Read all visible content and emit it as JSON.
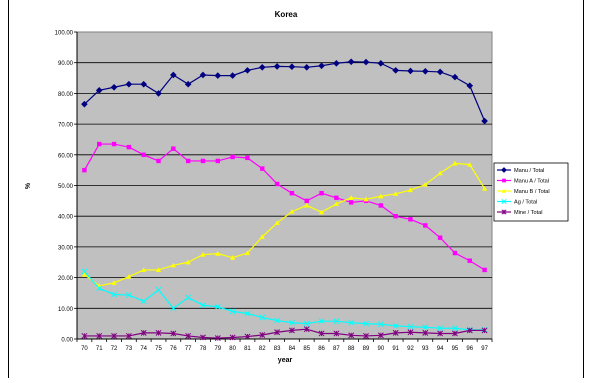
{
  "chart_data": {
    "type": "line",
    "title": "Korea",
    "xlabel": "year",
    "ylabel": "%",
    "ylim": [
      0,
      100
    ],
    "yticks": [
      "0.00",
      "10.00",
      "20.00",
      "30.00",
      "40.00",
      "50.00",
      "60.00",
      "70.00",
      "80.00",
      "90.00",
      "100.00"
    ],
    "x": [
      "70",
      "71",
      "72",
      "73",
      "74",
      "75",
      "76",
      "77",
      "78",
      "79",
      "80",
      "81",
      "82",
      "83",
      "84",
      "85",
      "86",
      "87",
      "88",
      "89",
      "90",
      "91",
      "92",
      "93",
      "94",
      "95",
      "96",
      "97"
    ],
    "grid": true,
    "legend": "right",
    "plot_background": "#c0c0c0",
    "series": [
      {
        "name": "Manu / Total",
        "color": "#000080",
        "marker": "diamond",
        "values": [
          76.5,
          81.0,
          82.0,
          83.0,
          83.0,
          80.0,
          86.0,
          83.0,
          86.0,
          85.8,
          85.8,
          87.5,
          88.5,
          88.8,
          88.7,
          88.5,
          89.0,
          89.8,
          90.3,
          90.2,
          89.8,
          87.5,
          87.3,
          87.2,
          87.0,
          85.3,
          82.5,
          71.0
        ]
      },
      {
        "name": "Manu A / Total",
        "color": "#ff00ff",
        "marker": "square",
        "values": [
          55.0,
          63.5,
          63.5,
          62.5,
          60.0,
          58.0,
          62.0,
          58.0,
          58.0,
          58.0,
          59.3,
          59.0,
          55.5,
          50.5,
          47.5,
          45.0,
          47.5,
          46.0,
          44.5,
          45.0,
          43.5,
          40.0,
          39.0,
          37.0,
          33.0,
          28.0,
          25.5,
          22.5
        ]
      },
      {
        "name": "Manu B / Total",
        "color": "#ffff00",
        "marker": "triangle",
        "values": [
          21.0,
          17.3,
          18.3,
          20.3,
          22.5,
          22.5,
          24.0,
          25.0,
          27.5,
          27.8,
          26.5,
          28.0,
          33.3,
          37.8,
          41.5,
          43.5,
          41.3,
          44.0,
          46.0,
          45.5,
          46.5,
          47.3,
          48.5,
          50.3,
          54.0,
          57.2,
          56.8,
          49.0
        ]
      },
      {
        "name": "Ag / Total",
        "color": "#00ffff",
        "marker": "x",
        "values": [
          22.0,
          16.5,
          14.5,
          14.3,
          12.3,
          16.0,
          10.0,
          13.5,
          11.0,
          10.5,
          9.0,
          8.3,
          7.0,
          6.0,
          5.3,
          5.0,
          5.8,
          5.8,
          5.3,
          5.0,
          4.8,
          4.3,
          4.0,
          3.8,
          3.5,
          3.5,
          3.0,
          3.0
        ]
      },
      {
        "name": "Mine / Total",
        "color": "#800080",
        "marker": "star",
        "values": [
          1.0,
          1.0,
          1.0,
          1.0,
          2.0,
          2.0,
          1.8,
          1.0,
          0.5,
          0.3,
          0.5,
          0.8,
          1.3,
          2.2,
          2.8,
          3.2,
          1.8,
          1.8,
          1.2,
          1.0,
          1.2,
          2.0,
          2.2,
          2.0,
          1.8,
          1.8,
          2.8,
          2.8
        ]
      }
    ]
  }
}
